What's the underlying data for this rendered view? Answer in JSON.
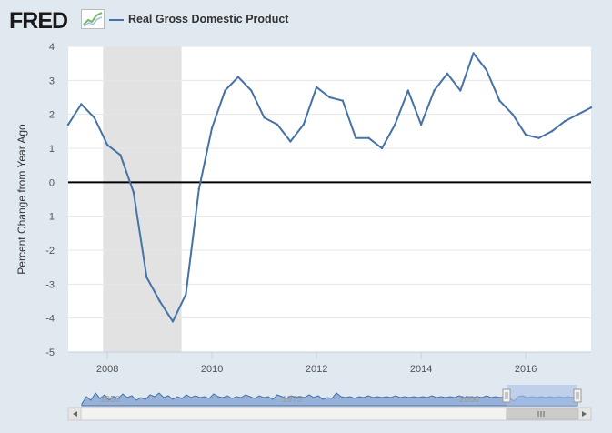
{
  "header": {
    "logo_text": "FRED",
    "logo_icon": "line-graph-icon",
    "legend_label": "Real Gross Domestic Product"
  },
  "colors": {
    "series": "#4572a7",
    "background": "#e1e9f0",
    "plot_background": "#ffffff",
    "recession": "#e2e2e2",
    "zero_line": "#000000"
  },
  "chart_data": {
    "type": "line",
    "title": "",
    "xlabel": "",
    "ylabel": "Percent Change from Year Ago",
    "xlim": [
      2007.25,
      2017.25
    ],
    "ylim": [
      -5,
      4
    ],
    "yticks": [
      4,
      3,
      2,
      1,
      0,
      -1,
      -2,
      -3,
      -4,
      -5
    ],
    "xticks": [
      2008,
      2010,
      2012,
      2014,
      2016
    ],
    "grid": true,
    "recession_shading": [
      [
        2007.917,
        2009.417
      ]
    ],
    "series": [
      {
        "name": "Real Gross Domestic Product",
        "x": [
          2007.25,
          2007.5,
          2007.75,
          2008.0,
          2008.25,
          2008.5,
          2008.75,
          2009.0,
          2009.25,
          2009.5,
          2009.75,
          2010.0,
          2010.25,
          2010.5,
          2010.75,
          2011.0,
          2011.25,
          2011.5,
          2011.75,
          2012.0,
          2012.25,
          2012.5,
          2012.75,
          2013.0,
          2013.25,
          2013.5,
          2013.75,
          2014.0,
          2014.25,
          2014.5,
          2014.75,
          2015.0,
          2015.25,
          2015.5,
          2015.75,
          2016.0,
          2016.25,
          2016.5,
          2016.75,
          2017.0,
          2017.25
        ],
        "y": [
          1.7,
          2.3,
          1.9,
          1.1,
          0.8,
          -0.3,
          -2.8,
          -3.5,
          -4.1,
          -3.3,
          -0.2,
          1.6,
          2.7,
          3.1,
          2.7,
          1.9,
          1.7,
          1.2,
          1.7,
          2.8,
          2.5,
          2.4,
          1.3,
          1.3,
          1.0,
          1.7,
          2.7,
          1.7,
          2.7,
          3.2,
          2.7,
          3.8,
          3.3,
          2.4,
          2.0,
          1.4,
          1.3,
          1.5,
          1.8,
          2.0,
          2.2
        ]
      }
    ],
    "navigator": {
      "tick_labels": [
        "1950",
        "1975",
        "2000"
      ]
    }
  }
}
